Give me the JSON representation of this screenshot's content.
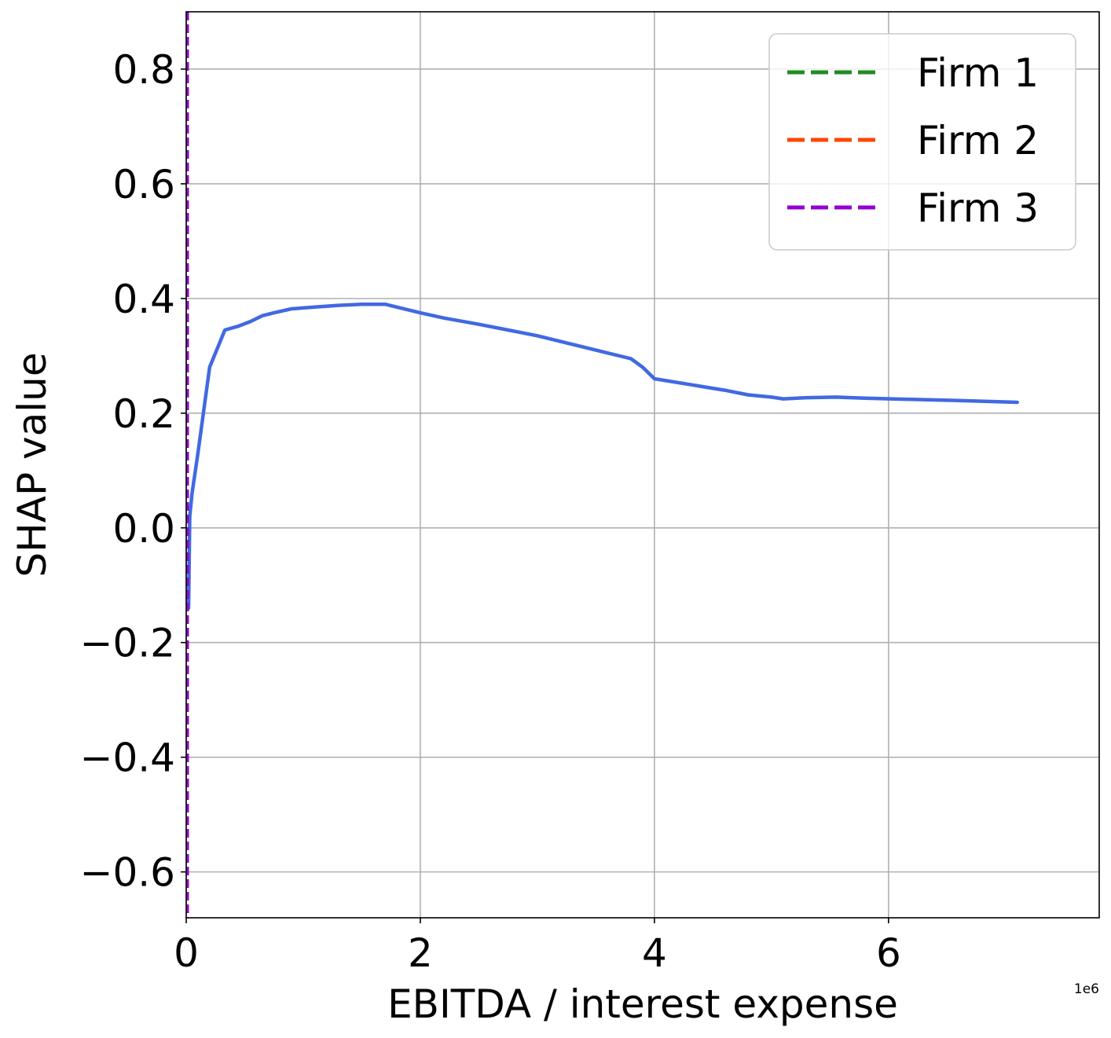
{
  "chart_data": {
    "type": "line",
    "title": "",
    "xlabel": "EBITDA / interest expense",
    "ylabel": "SHAP value",
    "x_offset_label": "1e6",
    "xlim": [
      0,
      7.8
    ],
    "ylim": [
      -0.68,
      0.9
    ],
    "x_ticks": [
      0,
      2,
      4,
      6
    ],
    "x_tick_labels": [
      "0",
      "2",
      "4",
      "6"
    ],
    "y_ticks": [
      -0.6,
      -0.4,
      -0.2,
      0.0,
      0.2,
      0.4,
      0.6,
      0.8
    ],
    "y_tick_labels": [
      "−0.6",
      "−0.4",
      "−0.2",
      "0.0",
      "0.2",
      "0.4",
      "0.6",
      "0.8"
    ],
    "grid": true,
    "legend_position": "top-right",
    "series": [
      {
        "color": "#4169e1",
        "style": "solid",
        "points": [
          [
            0.02,
            -0.14
          ],
          [
            0.03,
            0.02
          ],
          [
            0.05,
            0.06
          ],
          [
            0.1,
            0.13
          ],
          [
            0.2,
            0.28
          ],
          [
            0.33,
            0.345
          ],
          [
            0.45,
            0.352
          ],
          [
            0.55,
            0.36
          ],
          [
            0.65,
            0.37
          ],
          [
            0.75,
            0.375
          ],
          [
            0.9,
            0.382
          ],
          [
            1.1,
            0.385
          ],
          [
            1.3,
            0.388
          ],
          [
            1.5,
            0.39
          ],
          [
            1.7,
            0.39
          ],
          [
            2.0,
            0.375
          ],
          [
            2.2,
            0.366
          ],
          [
            2.5,
            0.355
          ],
          [
            3.0,
            0.335
          ],
          [
            3.5,
            0.31
          ],
          [
            3.8,
            0.295
          ],
          [
            3.9,
            0.28
          ],
          [
            4.0,
            0.26
          ],
          [
            4.3,
            0.25
          ],
          [
            4.6,
            0.24
          ],
          [
            4.8,
            0.232
          ],
          [
            5.0,
            0.228
          ],
          [
            5.1,
            0.225
          ],
          [
            5.3,
            0.227
          ],
          [
            5.55,
            0.228
          ],
          [
            5.8,
            0.226
          ],
          [
            6.2,
            0.224
          ],
          [
            6.6,
            0.222
          ],
          [
            7.1,
            0.219
          ]
        ]
      }
    ],
    "vertical_lines": [
      {
        "name": "Firm 1",
        "x": 0.0,
        "color": "#228b22",
        "style": "dashed"
      },
      {
        "name": "Firm 2",
        "x": 0.0,
        "color": "#ff4500",
        "style": "dashed"
      },
      {
        "name": "Firm 3",
        "x": 0.0,
        "color": "#9400d3",
        "style": "dashed"
      }
    ],
    "legend": [
      {
        "label": "Firm 1",
        "color": "#228b22"
      },
      {
        "label": "Firm 2",
        "color": "#ff4500"
      },
      {
        "label": "Firm 3",
        "color": "#9400d3"
      }
    ]
  }
}
